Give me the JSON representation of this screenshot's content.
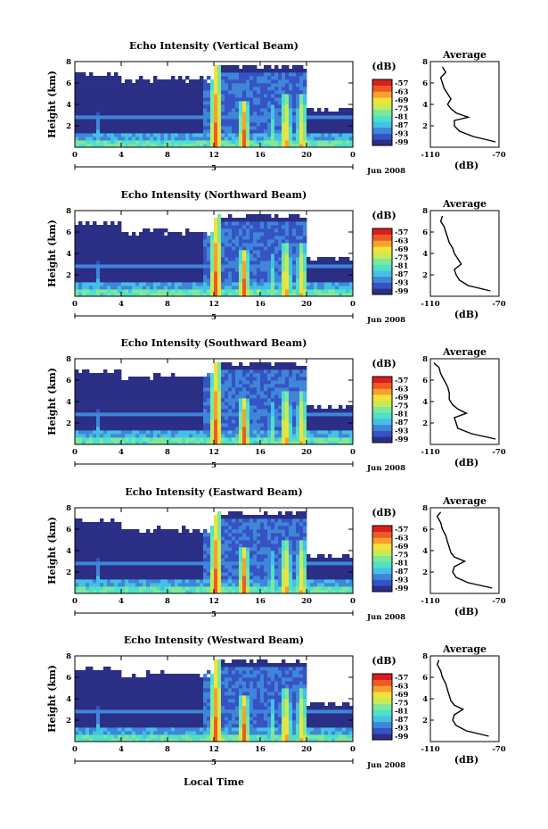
{
  "figure": {
    "xlabel": "Local Time",
    "ylabel": "Height (km)",
    "date_label": "Jun 2008",
    "day_label": "5",
    "colorbar_unit": "(dB)",
    "colorbar_ticks": [
      "-57",
      "-63",
      "-69",
      "-75",
      "-81",
      "-87",
      "-93",
      "-99"
    ],
    "avg_title": "Average",
    "avg_xlabel": "(dB)"
  },
  "colors": {
    "scale": [
      "#2b2f86",
      "#3653c4",
      "#3f86d8",
      "#44c0e6",
      "#4fe0c8",
      "#7ee89a",
      "#c8ea55",
      "#f3e23a",
      "#f6a02e",
      "#ef5a24",
      "#d81f1f"
    ],
    "background": "#ffffff",
    "axis": "#000000"
  },
  "chart_data": [
    {
      "type": "heatmap",
      "title": "Echo Intensity (Vertical Beam)",
      "x_unit": "Local Time (h)",
      "xlim": [
        0,
        24
      ],
      "ylim": [
        0,
        8
      ],
      "xticks": [
        "0",
        "4",
        "8",
        "12",
        "16",
        "20",
        "0"
      ],
      "yticks": [
        "2",
        "4",
        "6",
        "8"
      ],
      "zlim": [
        -99,
        -57
      ],
      "profile": {
        "xlim": [
          -110,
          -70
        ],
        "xticks": [
          "-110",
          "-70"
        ],
        "yticks": [
          "2",
          "4",
          "6",
          "8"
        ],
        "heights": [
          0.5,
          1.0,
          1.5,
          2.0,
          2.5,
          2.8,
          3.2,
          3.6,
          4.0,
          4.5,
          5.0,
          5.5,
          6.0,
          6.5,
          7.0,
          7.5
        ],
        "values": [
          -72,
          -85,
          -93,
          -96,
          -96,
          -88,
          -95,
          -98,
          -100,
          -98,
          -100,
          -102,
          -103,
          -104,
          -101,
          -103
        ]
      }
    },
    {
      "type": "heatmap",
      "title": "Echo Intensity (Northward Beam)",
      "x_unit": "Local Time (h)",
      "xlim": [
        0,
        24
      ],
      "ylim": [
        0,
        8
      ],
      "xticks": [
        "0",
        "4",
        "8",
        "12",
        "16",
        "20",
        "0"
      ],
      "yticks": [
        "2",
        "4",
        "6",
        "8"
      ],
      "zlim": [
        -99,
        -57
      ],
      "profile": {
        "xlim": [
          -110,
          -70
        ],
        "xticks": [
          "-110",
          "-70"
        ],
        "yticks": [
          "2",
          "4",
          "6",
          "8"
        ],
        "heights": [
          0.5,
          1.0,
          1.5,
          2.0,
          2.5,
          3.0,
          3.5,
          4.0,
          4.5,
          5.0,
          5.5,
          6.0,
          6.5,
          7.0,
          7.5
        ],
        "values": [
          -75,
          -88,
          -93,
          -95,
          -96,
          -92,
          -94,
          -96,
          -97,
          -99,
          -100,
          -101,
          -102,
          -104,
          -103
        ]
      }
    },
    {
      "type": "heatmap",
      "title": "Echo Intensity (Southward Beam)",
      "x_unit": "Local Time (h)",
      "xlim": [
        0,
        24
      ],
      "ylim": [
        0,
        8
      ],
      "xticks": [
        "0",
        "4",
        "8",
        "12",
        "16",
        "20",
        "0"
      ],
      "yticks": [
        "2",
        "4",
        "6",
        "8"
      ],
      "zlim": [
        -99,
        -57
      ],
      "profile": {
        "xlim": [
          -110,
          -70
        ],
        "xticks": [
          "-110",
          "-70"
        ],
        "yticks": [
          "2",
          "4",
          "6",
          "8"
        ],
        "heights": [
          0.5,
          1.0,
          1.5,
          2.0,
          2.5,
          2.9,
          3.3,
          3.7,
          4.2,
          4.8,
          5.4,
          6.0,
          6.6,
          7.2,
          7.6
        ],
        "values": [
          -72,
          -86,
          -94,
          -95,
          -96,
          -89,
          -94,
          -97,
          -99,
          -99,
          -100,
          -102,
          -104,
          -105,
          -108
        ]
      }
    },
    {
      "type": "heatmap",
      "title": "Echo Intensity (Eastward Beam)",
      "x_unit": "Local Time (h)",
      "xlim": [
        0,
        24
      ],
      "ylim": [
        0,
        8
      ],
      "xticks": [
        "0",
        "4",
        "8",
        "12",
        "16",
        "20",
        "0"
      ],
      "yticks": [
        "2",
        "4",
        "6",
        "8"
      ],
      "zlim": [
        -99,
        -57
      ],
      "profile": {
        "xlim": [
          -110,
          -70
        ],
        "xticks": [
          "-110",
          "-70"
        ],
        "yticks": [
          "2",
          "4",
          "6",
          "8"
        ],
        "heights": [
          0.5,
          1.0,
          1.5,
          2.0,
          2.5,
          3.0,
          3.4,
          3.8,
          4.3,
          4.8,
          5.4,
          6.0,
          6.6,
          7.2,
          7.6
        ],
        "values": [
          -74,
          -88,
          -95,
          -97,
          -96,
          -90,
          -96,
          -98,
          -99,
          -100,
          -101,
          -103,
          -104,
          -106,
          -104
        ]
      }
    },
    {
      "type": "heatmap",
      "title": "Echo Intensity (Westward Beam)",
      "x_unit": "Local Time (h)",
      "xlim": [
        0,
        24
      ],
      "ylim": [
        0,
        8
      ],
      "xticks": [
        "0",
        "4",
        "8",
        "12",
        "16",
        "20",
        "0"
      ],
      "yticks": [
        "2",
        "4",
        "6",
        "8"
      ],
      "zlim": [
        -99,
        -57
      ],
      "profile": {
        "xlim": [
          -110,
          -70
        ],
        "xticks": [
          "-110",
          "-70"
        ],
        "yticks": [
          "2",
          "4",
          "6",
          "8"
        ],
        "heights": [
          0.5,
          1.0,
          1.5,
          2.0,
          2.5,
          3.0,
          3.4,
          3.8,
          4.3,
          4.8,
          5.4,
          6.0,
          6.6,
          7.2,
          7.6
        ],
        "values": [
          -76,
          -89,
          -95,
          -97,
          -96,
          -91,
          -96,
          -98,
          -99,
          -100,
          -101,
          -103,
          -104,
          -106,
          -105
        ]
      }
    }
  ]
}
